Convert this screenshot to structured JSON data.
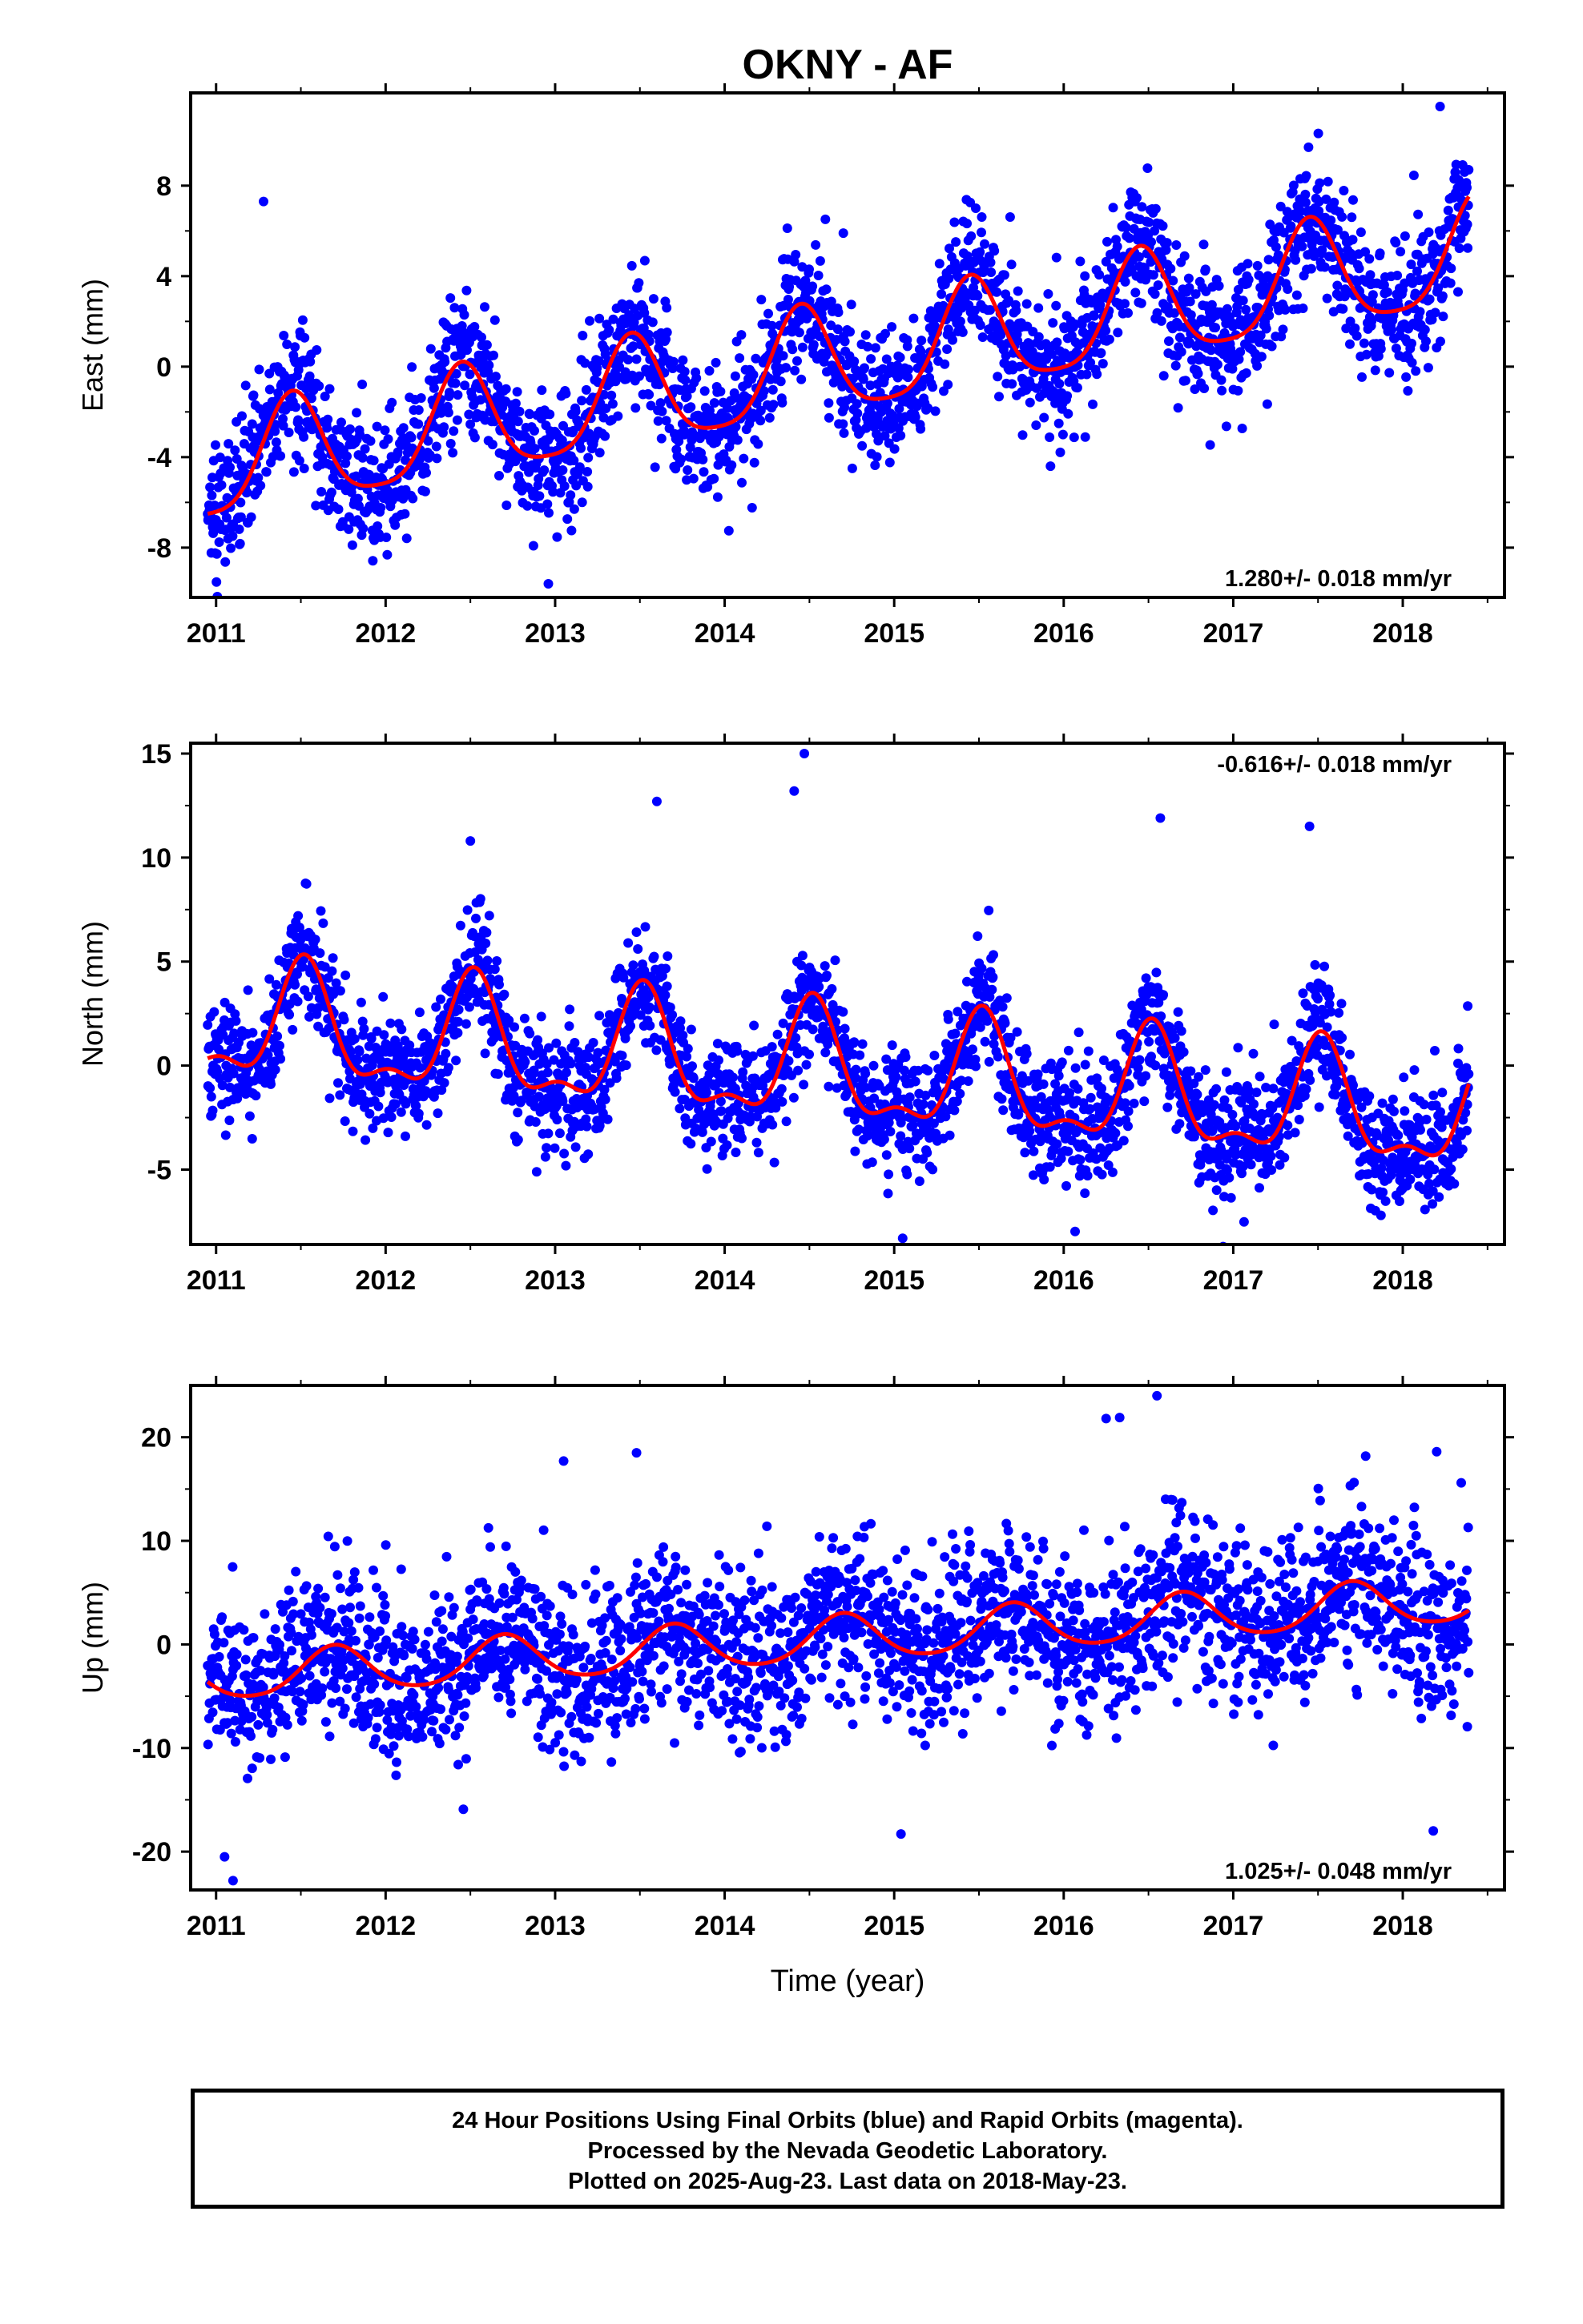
{
  "title": "OKNY - AF",
  "colors": {
    "final_orbits": "#0000ff",
    "rapid_orbits": "#ff00ff",
    "model": "#ff0000",
    "axes": "#000000"
  },
  "caption": {
    "line1": "24 Hour Positions Using Final Orbits (blue) and Rapid Orbits (magenta).",
    "line2": "Processed by the Nevada Geodetic Laboratory.",
    "line3": "Plotted on 2025-Aug-23. Last data on 2018-May-23."
  },
  "chart_data": [
    {
      "type": "scatter",
      "ylabel": "East (mm)",
      "xlabel": "",
      "xlim": [
        2010.85,
        2018.6
      ],
      "ylim": [
        -10.2,
        12.1
      ],
      "xticks": [
        "2011",
        "2012",
        "2013",
        "2014",
        "2015",
        "2016",
        "2017",
        "2018"
      ],
      "yticks": [
        "8",
        "4",
        "0",
        "-4",
        "-8"
      ],
      "y_tick_values": [
        8,
        4,
        0,
        -4,
        -8
      ],
      "rate_label": "1.280+/- 0.018 mm/yr",
      "rate_label_position": "bottom-right",
      "data_range": [
        2010.95,
        2018.39
      ],
      "trend": {
        "ref_year": 2010.95,
        "start_value": -4.6,
        "rate": 1.28
      },
      "seasonal": {
        "annual_amplitude": 2.4,
        "annual_phase_peak": 2011.45,
        "semiannual_amplitude": 0.5
      },
      "scatter_sd": 1.5,
      "marked_points": [
        {
          "x": 2011.28,
          "y": 7.3
        },
        {
          "x": 2018.22,
          "y": 11.5
        },
        {
          "x": 2012.96,
          "y": -9.6
        },
        {
          "x": 2014.7,
          "y": 5.9
        }
      ],
      "series": [
        {
          "name": "Final Orbits (blue)",
          "kind": "points"
        },
        {
          "name": "Model",
          "kind": "line"
        }
      ]
    },
    {
      "type": "scatter",
      "ylabel": "North (mm)",
      "xlabel": "",
      "xlim": [
        2010.85,
        2018.6
      ],
      "ylim": [
        -8.6,
        15.5
      ],
      "xticks": [
        "2011",
        "2012",
        "2013",
        "2014",
        "2015",
        "2016",
        "2017",
        "2018"
      ],
      "yticks": [
        "15",
        "10",
        "5",
        "0",
        "-5"
      ],
      "y_tick_values": [
        15,
        10,
        5,
        0,
        -5
      ],
      "rate_label": "-0.616+/- 0.018 mm/yr",
      "rate_label_position": "top-right",
      "data_range": [
        2010.95,
        2018.39
      ],
      "trend": {
        "ref_year": 2010.95,
        "start_value": 2.0,
        "rate": -0.616
      },
      "seasonal": {
        "annual_amplitude": 2.6,
        "annual_phase_peak": 2011.52,
        "semiannual_amplitude": 1.1
      },
      "scatter_sd": 1.4,
      "marked_points": [
        {
          "x": 2014.47,
          "y": 15.0
        },
        {
          "x": 2014.41,
          "y": 13.2
        },
        {
          "x": 2013.6,
          "y": 12.7
        },
        {
          "x": 2012.5,
          "y": 10.8
        },
        {
          "x": 2016.57,
          "y": 11.9
        },
        {
          "x": 2017.45,
          "y": 11.5
        },
        {
          "x": 2015.05,
          "y": -8.3
        }
      ],
      "series": [
        {
          "name": "Final Orbits (blue)",
          "kind": "points"
        },
        {
          "name": "Model",
          "kind": "line"
        }
      ]
    },
    {
      "type": "scatter",
      "ylabel": "Up (mm)",
      "xlabel": "Time (year)",
      "xlim": [
        2010.85,
        2018.6
      ],
      "ylim": [
        -23.7,
        25.0
      ],
      "xticks": [
        "2011",
        "2012",
        "2013",
        "2014",
        "2015",
        "2016",
        "2017",
        "2018"
      ],
      "yticks": [
        "20",
        "10",
        "0",
        "-10",
        "-20"
      ],
      "y_tick_values": [
        20,
        10,
        0,
        -10,
        -20
      ],
      "rate_label": "1.025+/- 0.048 mm/yr",
      "rate_label_position": "bottom-right",
      "data_range": [
        2010.95,
        2018.39
      ],
      "trend": {
        "ref_year": 2010.95,
        "start_value": -3.3,
        "rate": 1.025
      },
      "seasonal": {
        "annual_amplitude": 2.2,
        "annual_phase_peak": 2011.7,
        "semiannual_amplitude": 0.3
      },
      "scatter_sd": 4.0,
      "marked_points": [
        {
          "x": 2016.55,
          "y": 24.0
        },
        {
          "x": 2016.25,
          "y": 21.8
        },
        {
          "x": 2016.33,
          "y": 21.9
        },
        {
          "x": 2011.05,
          "y": -20.5
        },
        {
          "x": 2011.1,
          "y": -22.8
        },
        {
          "x": 2018.2,
          "y": 18.6
        },
        {
          "x": 2018.18,
          "y": -18.0
        },
        {
          "x": 2015.04,
          "y": -18.3
        },
        {
          "x": 2013.48,
          "y": 18.5
        },
        {
          "x": 2013.05,
          "y": 17.7
        }
      ],
      "series": [
        {
          "name": "Final Orbits (blue)",
          "kind": "points"
        },
        {
          "name": "Model",
          "kind": "line"
        }
      ]
    }
  ]
}
